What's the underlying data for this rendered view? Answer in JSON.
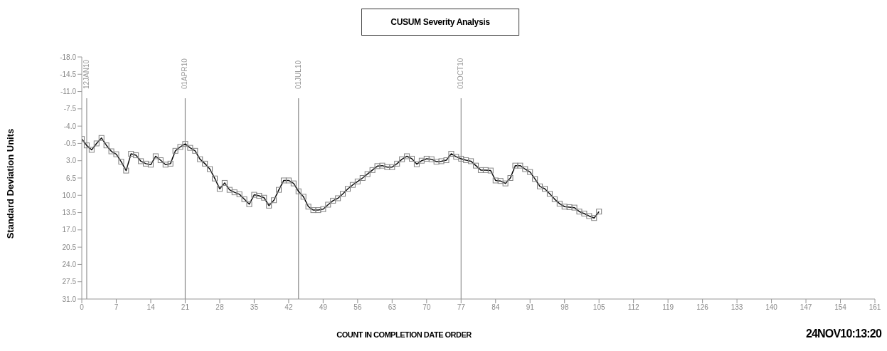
{
  "chart_data": {
    "type": "line",
    "title": "CUSUM Severity Analysis",
    "xlabel": "COUNT IN COMPLETION DATE ORDER",
    "ylabel": "Standard  Deviation  Units",
    "annotations": [
      "24NOV10:13:20"
    ],
    "x": [
      0,
      1,
      2,
      3,
      4,
      5,
      6,
      7,
      8,
      9,
      10,
      11,
      12,
      13,
      14,
      15,
      16,
      17,
      18,
      19,
      20,
      21,
      22,
      23,
      24,
      25,
      26,
      27,
      28,
      29,
      30,
      31,
      32,
      33,
      34,
      35,
      36,
      37,
      38,
      39,
      40,
      41,
      42,
      43,
      44,
      45,
      46,
      47,
      48,
      49,
      50,
      51,
      52,
      53,
      54,
      55,
      56,
      57,
      58,
      59,
      60,
      61,
      62,
      63,
      64,
      65,
      66,
      67,
      68,
      69,
      70,
      71,
      72,
      73,
      74,
      75,
      76,
      77,
      78,
      79,
      80,
      81,
      82,
      83,
      84,
      85,
      86,
      87,
      88,
      89,
      90,
      91,
      92,
      93,
      94,
      95,
      96,
      97,
      98,
      99,
      100,
      101,
      102,
      103,
      104,
      105
    ],
    "series": [
      {
        "color": "#111111",
        "values": [
          -1.4,
          -0.1,
          0.8,
          -0.5,
          -1.6,
          -0.1,
          1.1,
          1.7,
          3.2,
          5.0,
          1.6,
          1.9,
          3.1,
          3.6,
          3.8,
          2.1,
          2.9,
          3.8,
          3.6,
          1.0,
          0.2,
          -0.4,
          0.4,
          1.0,
          2.7,
          3.6,
          4.7,
          6.6,
          8.7,
          7.5,
          8.9,
          9.4,
          9.8,
          10.8,
          11.8,
          9.9,
          10.1,
          10.5,
          12.1,
          11.0,
          8.9,
          7.0,
          7.0,
          7.6,
          9.2,
          10.3,
          12.3,
          13.0,
          13.0,
          12.8,
          11.9,
          11.1,
          10.6,
          9.7,
          8.7,
          7.9,
          7.2,
          6.5,
          5.7,
          4.9,
          4.1,
          4.0,
          4.3,
          4.3,
          3.6,
          2.7,
          2.1,
          2.6,
          3.7,
          3.0,
          2.6,
          2.7,
          3.2,
          3.1,
          2.9,
          1.6,
          2.2,
          2.6,
          2.9,
          3.1,
          4.0,
          4.9,
          4.9,
          5.0,
          7.0,
          7.1,
          7.6,
          6.5,
          4.0,
          4.0,
          4.7,
          5.3,
          6.7,
          8.2,
          8.7,
          9.7,
          10.8,
          11.7,
          12.3,
          12.4,
          12.5,
          13.3,
          13.7,
          14.2,
          14.6,
          13.3
        ]
      }
    ],
    "xlim": [
      0,
      161
    ],
    "xticks": [
      0,
      7,
      14,
      21,
      28,
      35,
      42,
      49,
      56,
      63,
      70,
      77,
      84,
      91,
      98,
      105,
      112,
      119,
      126,
      133,
      140,
      147,
      154,
      161
    ],
    "ylim": [
      31,
      -18
    ],
    "yticks": [
      {
        "value": -18,
        "label": "-18.0"
      },
      {
        "value": -14.5,
        "label": "-14.5"
      },
      {
        "value": -11,
        "label": "-11.0"
      },
      {
        "value": -7.5,
        "label": "-7.5"
      },
      {
        "value": -4,
        "label": "-4.0"
      },
      {
        "value": -0.5,
        "label": "-0.5"
      },
      {
        "value": 3,
        "label": "3.0"
      },
      {
        "value": 6.5,
        "label": "6.5"
      },
      {
        "value": 10,
        "label": "10.0"
      },
      {
        "value": 13.5,
        "label": "13.5"
      },
      {
        "value": 17,
        "label": "17.0"
      },
      {
        "value": 20.5,
        "label": "20.5"
      },
      {
        "value": 24,
        "label": "24.0"
      },
      {
        "value": 27.5,
        "label": "27.5"
      },
      {
        "value": 31,
        "label": "31.0"
      }
    ],
    "ref_lines": [
      {
        "axis": "x",
        "value": 1,
        "label": "12JAN10",
        "color": "#999999"
      },
      {
        "axis": "x",
        "value": 21,
        "label": "01APR10",
        "color": "#999999"
      },
      {
        "axis": "x",
        "value": 44,
        "label": "01JUL10",
        "color": "#999999"
      },
      {
        "axis": "x",
        "value": 77,
        "label": "01OCT10",
        "color": "#999999"
      }
    ],
    "grid": false,
    "marker": "square",
    "line_style": "solid"
  }
}
